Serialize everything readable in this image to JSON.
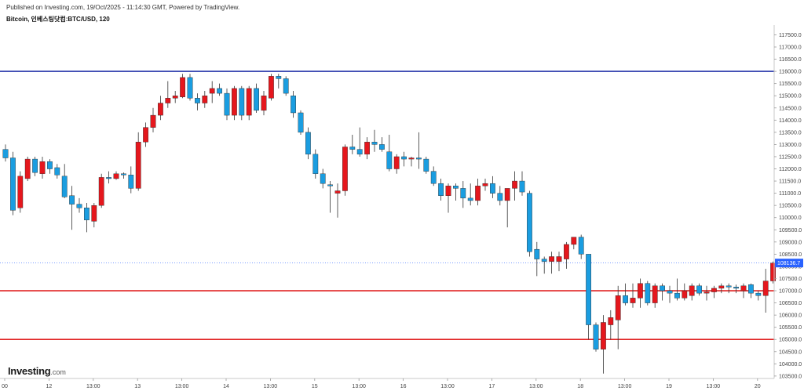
{
  "header": {
    "published": "Published on Investing.com, 19/Oct/2025 - 11:14:30 GMT, Powered by TradingView.",
    "symbol": "Bitcoin, 인베스팅닷컴:BTC/USD, 120"
  },
  "logo": {
    "brand": "Investing",
    "suffix": ".com"
  },
  "chart_data": {
    "type": "candlestick",
    "interval": "120",
    "ylim": [
      103400,
      117900
    ],
    "y_ticks": [
      117500,
      117000,
      116500,
      116000,
      115500,
      115000,
      114500,
      114000,
      113500,
      113000,
      112500,
      112000,
      111500,
      111000,
      110500,
      110000,
      109500,
      109000,
      108500,
      108000,
      107500,
      107000,
      106500,
      106000,
      105500,
      105000,
      104500,
      104000,
      103500
    ],
    "x_ticks": [
      {
        "label": "00",
        "index": 0
      },
      {
        "label": "12",
        "index": 6
      },
      {
        "label": "13:00",
        "index": 12
      },
      {
        "label": "13",
        "index": 18
      },
      {
        "label": "13:00",
        "index": 24
      },
      {
        "label": "14",
        "index": 30
      },
      {
        "label": "13:00",
        "index": 36
      },
      {
        "label": "15",
        "index": 42
      },
      {
        "label": "13:00",
        "index": 48
      },
      {
        "label": "16",
        "index": 54
      },
      {
        "label": "13:00",
        "index": 60
      },
      {
        "label": "17",
        "index": 66
      },
      {
        "label": "13:00",
        "index": 72
      },
      {
        "label": "18",
        "index": 78
      },
      {
        "label": "13:00",
        "index": 84
      },
      {
        "label": "19",
        "index": 90
      },
      {
        "label": "13:00",
        "index": 96
      },
      {
        "label": "20",
        "index": 102
      }
    ],
    "current_price": "108136.7",
    "current_price_value": 108136.7,
    "horizontal_lines": [
      {
        "value": 116000,
        "color": "#2232a8"
      },
      {
        "value": 107000,
        "color": "#e02020"
      },
      {
        "value": 105000,
        "color": "#e02020"
      }
    ],
    "colors": {
      "up": "#e5171d",
      "down": "#1a9de0",
      "price_line": "#2962ff"
    },
    "candles": [
      {
        "o": 112800,
        "h": 113000,
        "l": 112300,
        "c": 112450
      },
      {
        "o": 112450,
        "h": 112700,
        "l": 110100,
        "c": 110300
      },
      {
        "o": 110400,
        "h": 111900,
        "l": 110200,
        "c": 111700
      },
      {
        "o": 111600,
        "h": 112500,
        "l": 111500,
        "c": 112400
      },
      {
        "o": 112400,
        "h": 112500,
        "l": 111700,
        "c": 111850
      },
      {
        "o": 111800,
        "h": 112500,
        "l": 111600,
        "c": 112300
      },
      {
        "o": 112300,
        "h": 112400,
        "l": 111800,
        "c": 112000
      },
      {
        "o": 112050,
        "h": 112200,
        "l": 111600,
        "c": 111750
      },
      {
        "o": 111700,
        "h": 112200,
        "l": 110800,
        "c": 110850
      },
      {
        "o": 110900,
        "h": 111300,
        "l": 109500,
        "c": 110550
      },
      {
        "o": 110550,
        "h": 110800,
        "l": 110200,
        "c": 110400
      },
      {
        "o": 110400,
        "h": 110600,
        "l": 109400,
        "c": 109900
      },
      {
        "o": 109850,
        "h": 110600,
        "l": 109600,
        "c": 110500
      },
      {
        "o": 110500,
        "h": 111800,
        "l": 110400,
        "c": 111650
      },
      {
        "o": 111650,
        "h": 111900,
        "l": 111400,
        "c": 111600
      },
      {
        "o": 111600,
        "h": 111900,
        "l": 111550,
        "c": 111800
      },
      {
        "o": 111800,
        "h": 111850,
        "l": 111600,
        "c": 111750
      },
      {
        "o": 111750,
        "h": 112100,
        "l": 111000,
        "c": 111200
      },
      {
        "o": 111200,
        "h": 113500,
        "l": 111100,
        "c": 113100
      },
      {
        "o": 113100,
        "h": 113900,
        "l": 112900,
        "c": 113700
      },
      {
        "o": 113700,
        "h": 114500,
        "l": 113500,
        "c": 114200
      },
      {
        "o": 114200,
        "h": 115000,
        "l": 114000,
        "c": 114700
      },
      {
        "o": 114700,
        "h": 115600,
        "l": 114500,
        "c": 114900
      },
      {
        "o": 114900,
        "h": 115200,
        "l": 114700,
        "c": 115000
      },
      {
        "o": 114950,
        "h": 115900,
        "l": 114900,
        "c": 115750
      },
      {
        "o": 115750,
        "h": 115900,
        "l": 114800,
        "c": 114900
      },
      {
        "o": 114900,
        "h": 115100,
        "l": 114400,
        "c": 114700
      },
      {
        "o": 114700,
        "h": 115200,
        "l": 114500,
        "c": 115000
      },
      {
        "o": 115100,
        "h": 115600,
        "l": 114700,
        "c": 115300
      },
      {
        "o": 115300,
        "h": 115500,
        "l": 115000,
        "c": 115100
      },
      {
        "o": 115100,
        "h": 115300,
        "l": 114000,
        "c": 114200
      },
      {
        "o": 114200,
        "h": 115400,
        "l": 114000,
        "c": 115300
      },
      {
        "o": 115300,
        "h": 115400,
        "l": 114000,
        "c": 114200
      },
      {
        "o": 114200,
        "h": 115400,
        "l": 114000,
        "c": 115300
      },
      {
        "o": 115300,
        "h": 115500,
        "l": 114300,
        "c": 114400
      },
      {
        "o": 114400,
        "h": 115200,
        "l": 114200,
        "c": 115000
      },
      {
        "o": 114900,
        "h": 115900,
        "l": 114800,
        "c": 115800
      },
      {
        "o": 115800,
        "h": 115900,
        "l": 115300,
        "c": 115700
      },
      {
        "o": 115700,
        "h": 115800,
        "l": 115000,
        "c": 115100
      },
      {
        "o": 115000,
        "h": 115200,
        "l": 114100,
        "c": 114300
      },
      {
        "o": 114300,
        "h": 114400,
        "l": 113400,
        "c": 113500
      },
      {
        "o": 113500,
        "h": 113700,
        "l": 112400,
        "c": 112600
      },
      {
        "o": 112600,
        "h": 112800,
        "l": 111600,
        "c": 111800
      },
      {
        "o": 111800,
        "h": 112000,
        "l": 111200,
        "c": 111400
      },
      {
        "o": 111350,
        "h": 111500,
        "l": 110200,
        "c": 111300
      },
      {
        "o": 111000,
        "h": 111400,
        "l": 110000,
        "c": 111100
      },
      {
        "o": 111100,
        "h": 113000,
        "l": 110900,
        "c": 112900
      },
      {
        "o": 112900,
        "h": 113400,
        "l": 112600,
        "c": 112800
      },
      {
        "o": 112800,
        "h": 113700,
        "l": 112500,
        "c": 112600
      },
      {
        "o": 112600,
        "h": 113300,
        "l": 112400,
        "c": 113100
      },
      {
        "o": 113100,
        "h": 113600,
        "l": 112700,
        "c": 113000
      },
      {
        "o": 113000,
        "h": 113300,
        "l": 112700,
        "c": 112800
      },
      {
        "o": 112700,
        "h": 113400,
        "l": 111900,
        "c": 112000
      },
      {
        "o": 112000,
        "h": 112600,
        "l": 111800,
        "c": 112500
      },
      {
        "o": 112500,
        "h": 112700,
        "l": 112100,
        "c": 112400
      },
      {
        "o": 112400,
        "h": 112500,
        "l": 112100,
        "c": 112450
      },
      {
        "o": 112450,
        "h": 113500,
        "l": 112000,
        "c": 112400
      },
      {
        "o": 112400,
        "h": 112500,
        "l": 111800,
        "c": 111900
      },
      {
        "o": 111900,
        "h": 112100,
        "l": 111300,
        "c": 111400
      },
      {
        "o": 111400,
        "h": 111600,
        "l": 110700,
        "c": 110900
      },
      {
        "o": 110900,
        "h": 111400,
        "l": 110200,
        "c": 111300
      },
      {
        "o": 111300,
        "h": 111400,
        "l": 110700,
        "c": 111200
      },
      {
        "o": 111200,
        "h": 111500,
        "l": 110400,
        "c": 110800
      },
      {
        "o": 110800,
        "h": 111400,
        "l": 110500,
        "c": 110700
      },
      {
        "o": 110700,
        "h": 111600,
        "l": 110500,
        "c": 111300
      },
      {
        "o": 111300,
        "h": 111600,
        "l": 111100,
        "c": 111400
      },
      {
        "o": 111400,
        "h": 111700,
        "l": 110800,
        "c": 111000
      },
      {
        "o": 111000,
        "h": 111300,
        "l": 110500,
        "c": 110700
      },
      {
        "o": 110700,
        "h": 111100,
        "l": 109600,
        "c": 111200
      },
      {
        "o": 111200,
        "h": 111900,
        "l": 110700,
        "c": 111500
      },
      {
        "o": 111500,
        "h": 111900,
        "l": 110900,
        "c": 111050
      },
      {
        "o": 111000,
        "h": 111100,
        "l": 108400,
        "c": 108600
      },
      {
        "o": 108700,
        "h": 109000,
        "l": 107600,
        "c": 108300
      },
      {
        "o": 108300,
        "h": 108400,
        "l": 107700,
        "c": 108200
      },
      {
        "o": 108200,
        "h": 108600,
        "l": 107700,
        "c": 108400
      },
      {
        "o": 108200,
        "h": 108600,
        "l": 107800,
        "c": 108400
      },
      {
        "o": 108300,
        "h": 109000,
        "l": 107900,
        "c": 108900
      },
      {
        "o": 108900,
        "h": 109200,
        "l": 108700,
        "c": 109200
      },
      {
        "o": 109200,
        "h": 109300,
        "l": 108300,
        "c": 108500
      },
      {
        "o": 108500,
        "h": 108500,
        "l": 105000,
        "c": 105600
      },
      {
        "o": 105600,
        "h": 105700,
        "l": 104500,
        "c": 104600
      },
      {
        "o": 104600,
        "h": 106000,
        "l": 103600,
        "c": 105700
      },
      {
        "o": 105600,
        "h": 106200,
        "l": 105000,
        "c": 105900
      },
      {
        "o": 105800,
        "h": 107200,
        "l": 104600,
        "c": 106800
      },
      {
        "o": 106800,
        "h": 107300,
        "l": 106400,
        "c": 106500
      },
      {
        "o": 106500,
        "h": 107300,
        "l": 106300,
        "c": 106700
      },
      {
        "o": 106700,
        "h": 107500,
        "l": 106300,
        "c": 107300
      },
      {
        "o": 107300,
        "h": 107400,
        "l": 106400,
        "c": 106500
      },
      {
        "o": 106500,
        "h": 107300,
        "l": 106300,
        "c": 107200
      },
      {
        "o": 107200,
        "h": 107300,
        "l": 106600,
        "c": 107000
      },
      {
        "o": 107000,
        "h": 107200,
        "l": 106500,
        "c": 106900
      },
      {
        "o": 106900,
        "h": 107500,
        "l": 106600,
        "c": 106700
      },
      {
        "o": 106700,
        "h": 107300,
        "l": 106600,
        "c": 107000
      },
      {
        "o": 106800,
        "h": 107300,
        "l": 106600,
        "c": 107200
      },
      {
        "o": 107200,
        "h": 107300,
        "l": 106800,
        "c": 106900
      },
      {
        "o": 106900,
        "h": 107200,
        "l": 106600,
        "c": 106950
      },
      {
        "o": 106950,
        "h": 107200,
        "l": 106700,
        "c": 107100
      },
      {
        "o": 107100,
        "h": 107300,
        "l": 106900,
        "c": 107200
      },
      {
        "o": 107200,
        "h": 107300,
        "l": 106900,
        "c": 107150
      },
      {
        "o": 107150,
        "h": 107250,
        "l": 106900,
        "c": 107100
      },
      {
        "o": 107000,
        "h": 107300,
        "l": 106700,
        "c": 107200
      },
      {
        "o": 107250,
        "h": 107300,
        "l": 106700,
        "c": 106900
      },
      {
        "o": 106900,
        "h": 107000,
        "l": 106600,
        "c": 106800
      },
      {
        "o": 106800,
        "h": 107900,
        "l": 106100,
        "c": 107400
      },
      {
        "o": 107400,
        "h": 108200,
        "l": 107300,
        "c": 108136.7
      }
    ]
  }
}
